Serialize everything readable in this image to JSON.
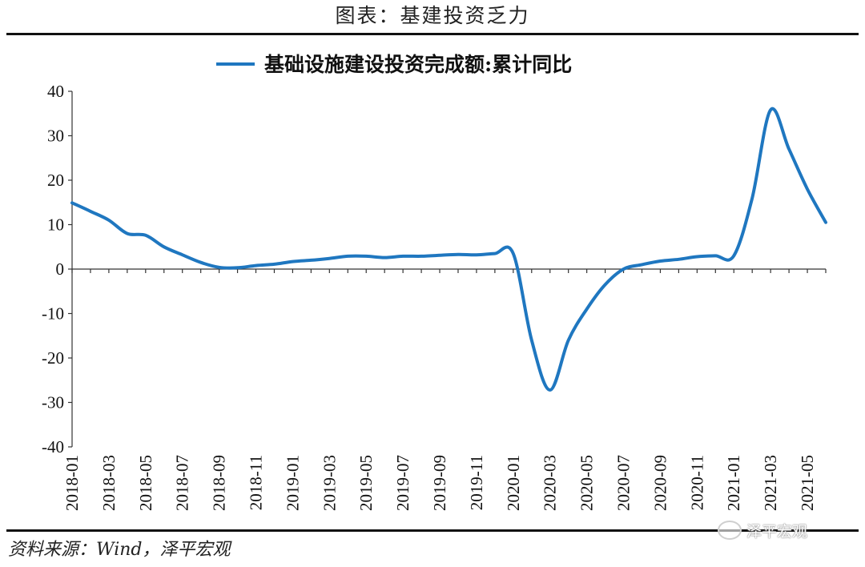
{
  "header": {
    "title": "图表：基建投资乏力"
  },
  "footer": {
    "source": "资料来源：Wind，泽平宏观",
    "watermark": "泽平宏观"
  },
  "chart_data": {
    "type": "line",
    "title": "",
    "xlabel": "",
    "ylabel": "",
    "ylim": [
      -40,
      40
    ],
    "yticks": [
      40,
      30,
      20,
      10,
      0,
      -10,
      -20,
      -30,
      -40
    ],
    "xticks": [
      "2018-01",
      "2018-03",
      "2018-05",
      "2018-07",
      "2018-09",
      "2018-11",
      "2019-01",
      "2019-03",
      "2019-05",
      "2019-07",
      "2019-09",
      "2019-11",
      "2020-01",
      "2020-03",
      "2020-05",
      "2020-07",
      "2020-09",
      "2020-11",
      "2021-01",
      "2021-03",
      "2021-05"
    ],
    "grid": false,
    "legend": "top",
    "series": [
      {
        "name": "基础设施建设投资完成额:累计同比",
        "color": "#1F77C0",
        "x": [
          "2018-01",
          "2018-02",
          "2018-03",
          "2018-04",
          "2018-05",
          "2018-06",
          "2018-07",
          "2018-08",
          "2018-09",
          "2018-10",
          "2018-11",
          "2018-12",
          "2019-01",
          "2019-02",
          "2019-03",
          "2019-04",
          "2019-05",
          "2019-06",
          "2019-07",
          "2019-08",
          "2019-09",
          "2019-10",
          "2019-11",
          "2019-12",
          "2020-01",
          "2020-02",
          "2020-03",
          "2020-04",
          "2020-05",
          "2020-06",
          "2020-07",
          "2020-08",
          "2020-09",
          "2020-10",
          "2020-11",
          "2020-12",
          "2021-01",
          "2021-02",
          "2021-03",
          "2021-04",
          "2021-05",
          "2021-06"
        ],
        "values": [
          14.9,
          13.0,
          11.0,
          8.0,
          7.6,
          5.0,
          3.2,
          1.5,
          0.4,
          0.3,
          0.8,
          1.1,
          1.7,
          2.0,
          2.4,
          2.9,
          2.9,
          2.6,
          2.9,
          2.9,
          3.1,
          3.3,
          3.2,
          3.5,
          3.5,
          -16.0,
          -27.2,
          -16.0,
          -9.0,
          -3.5,
          0.0,
          1.0,
          1.8,
          2.2,
          2.8,
          3.0,
          3.0,
          16.0,
          35.8,
          27.0,
          18.0,
          10.5
        ]
      }
    ]
  }
}
